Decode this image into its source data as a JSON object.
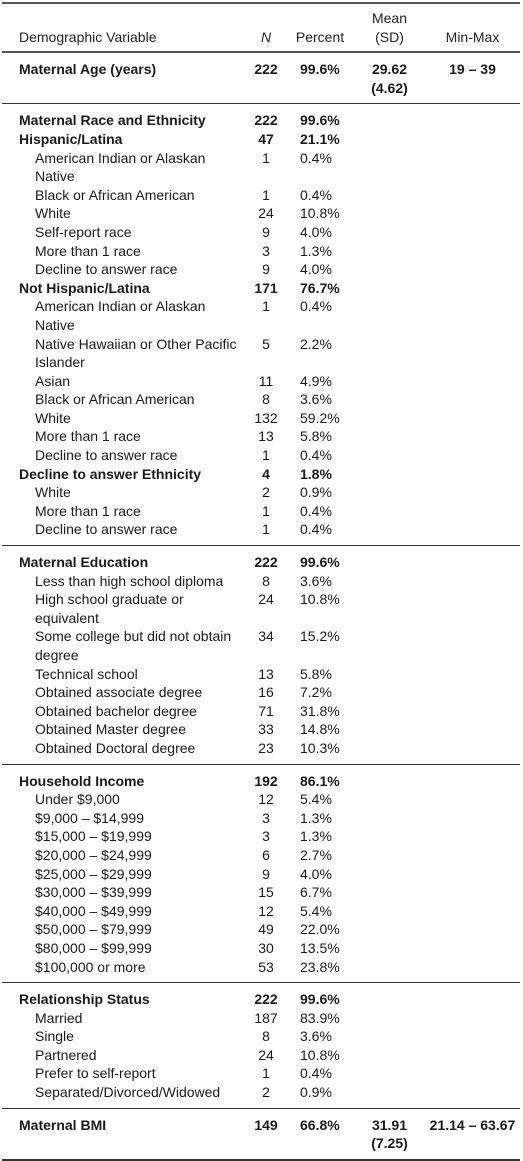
{
  "headers": {
    "variable": "Demographic Variable",
    "n": "N",
    "percent": "Percent",
    "mean_sd": "Mean (SD)",
    "minmax": "Min-Max"
  },
  "groups": [
    {
      "rows": [
        {
          "label": "Maternal Age (years)",
          "n": "222",
          "pct": "99.6%",
          "mean": "29.62 (4.62)",
          "range": "19 – 39",
          "bold": true,
          "sub": false
        }
      ]
    },
    {
      "rows": [
        {
          "label": "Maternal Race and Ethnicity",
          "n": "222",
          "pct": "99.6%",
          "mean": "",
          "range": "",
          "bold": true,
          "sub": false
        },
        {
          "label": "Hispanic/Latina",
          "n": "47",
          "pct": "21.1%",
          "mean": "",
          "range": "",
          "bold": true,
          "sub": false
        },
        {
          "label": "American Indian or Alaskan Native",
          "n": "1",
          "pct": "0.4%",
          "mean": "",
          "range": "",
          "bold": false,
          "sub": true
        },
        {
          "label": "Black or African American",
          "n": "1",
          "pct": "0.4%",
          "mean": "",
          "range": "",
          "bold": false,
          "sub": true
        },
        {
          "label": "White",
          "n": "24",
          "pct": "10.8%",
          "mean": "",
          "range": "",
          "bold": false,
          "sub": true
        },
        {
          "label": "Self-report race",
          "n": "9",
          "pct": "4.0%",
          "mean": "",
          "range": "",
          "bold": false,
          "sub": true
        },
        {
          "label": "More than 1 race",
          "n": "3",
          "pct": "1.3%",
          "mean": "",
          "range": "",
          "bold": false,
          "sub": true
        },
        {
          "label": "Decline to answer race",
          "n": "9",
          "pct": "4.0%",
          "mean": "",
          "range": "",
          "bold": false,
          "sub": true
        },
        {
          "label": "Not Hispanic/Latina",
          "n": "171",
          "pct": "76.7%",
          "mean": "",
          "range": "",
          "bold": true,
          "sub": false
        },
        {
          "label": "American Indian or Alaskan Native",
          "n": "1",
          "pct": "0.4%",
          "mean": "",
          "range": "",
          "bold": false,
          "sub": true
        },
        {
          "label": "Native Hawaiian or Other Pacific Islander",
          "n": "5",
          "pct": "2.2%",
          "mean": "",
          "range": "",
          "bold": false,
          "sub": true
        },
        {
          "label": "Asian",
          "n": "11",
          "pct": "4.9%",
          "mean": "",
          "range": "",
          "bold": false,
          "sub": true
        },
        {
          "label": "Black or African American",
          "n": "8",
          "pct": "3.6%",
          "mean": "",
          "range": "",
          "bold": false,
          "sub": true
        },
        {
          "label": "White",
          "n": "132",
          "pct": "59.2%",
          "mean": "",
          "range": "",
          "bold": false,
          "sub": true
        },
        {
          "label": "More than 1 race",
          "n": "13",
          "pct": "5.8%",
          "mean": "",
          "range": "",
          "bold": false,
          "sub": true
        },
        {
          "label": "Decline to answer race",
          "n": "1",
          "pct": "0.4%",
          "mean": "",
          "range": "",
          "bold": false,
          "sub": true
        },
        {
          "label": "Decline to answer Ethnicity",
          "n": "4",
          "pct": "1.8%",
          "mean": "",
          "range": "",
          "bold": true,
          "sub": false
        },
        {
          "label": "White",
          "n": "2",
          "pct": "0.9%",
          "mean": "",
          "range": "",
          "bold": false,
          "sub": true
        },
        {
          "label": "More than 1 race",
          "n": "1",
          "pct": "0.4%",
          "mean": "",
          "range": "",
          "bold": false,
          "sub": true
        },
        {
          "label": "Decline to answer race",
          "n": "1",
          "pct": "0.4%",
          "mean": "",
          "range": "",
          "bold": false,
          "sub": true
        }
      ]
    },
    {
      "rows": [
        {
          "label": "Maternal Education",
          "n": "222",
          "pct": "99.6%",
          "mean": "",
          "range": "",
          "bold": true,
          "sub": false
        },
        {
          "label": "Less than high school diploma",
          "n": "8",
          "pct": "3.6%",
          "mean": "",
          "range": "",
          "bold": false,
          "sub": true
        },
        {
          "label": "High school graduate or equivalent",
          "n": "24",
          "pct": "10.8%",
          "mean": "",
          "range": "",
          "bold": false,
          "sub": true
        },
        {
          "label": "Some college but did not obtain degree",
          "n": "34",
          "pct": "15.2%",
          "mean": "",
          "range": "",
          "bold": false,
          "sub": true
        },
        {
          "label": "Technical school",
          "n": "13",
          "pct": "5.8%",
          "mean": "",
          "range": "",
          "bold": false,
          "sub": true
        },
        {
          "label": "Obtained associate degree",
          "n": "16",
          "pct": "7.2%",
          "mean": "",
          "range": "",
          "bold": false,
          "sub": true
        },
        {
          "label": "Obtained bachelor degree",
          "n": "71",
          "pct": "31.8%",
          "mean": "",
          "range": "",
          "bold": false,
          "sub": true
        },
        {
          "label": "Obtained Master degree",
          "n": "33",
          "pct": "14.8%",
          "mean": "",
          "range": "",
          "bold": false,
          "sub": true
        },
        {
          "label": "Obtained Doctoral degree",
          "n": "23",
          "pct": "10.3%",
          "mean": "",
          "range": "",
          "bold": false,
          "sub": true
        }
      ]
    },
    {
      "rows": [
        {
          "label": "Household Income",
          "n": "192",
          "pct": "86.1%",
          "mean": "",
          "range": "",
          "bold": true,
          "sub": false
        },
        {
          "label": "Under $9,000",
          "n": "12",
          "pct": "5.4%",
          "mean": "",
          "range": "",
          "bold": false,
          "sub": true
        },
        {
          "label": "$9,000 – $14,999",
          "n": "3",
          "pct": "1.3%",
          "mean": "",
          "range": "",
          "bold": false,
          "sub": true
        },
        {
          "label": "$15,000 – $19,999",
          "n": "3",
          "pct": "1.3%",
          "mean": "",
          "range": "",
          "bold": false,
          "sub": true
        },
        {
          "label": "$20,000 – $24,999",
          "n": "6",
          "pct": "2.7%",
          "mean": "",
          "range": "",
          "bold": false,
          "sub": true
        },
        {
          "label": "$25,000 – $29,999",
          "n": "9",
          "pct": "4.0%",
          "mean": "",
          "range": "",
          "bold": false,
          "sub": true
        },
        {
          "label": "$30,000 – $39,999",
          "n": "15",
          "pct": "6.7%",
          "mean": "",
          "range": "",
          "bold": false,
          "sub": true
        },
        {
          "label": "$40,000 – $49,999",
          "n": "12",
          "pct": "5.4%",
          "mean": "",
          "range": "",
          "bold": false,
          "sub": true
        },
        {
          "label": "$50,000 – $79,999",
          "n": "49",
          "pct": "22.0%",
          "mean": "",
          "range": "",
          "bold": false,
          "sub": true
        },
        {
          "label": "$80,000 – $99,999",
          "n": "30",
          "pct": "13.5%",
          "mean": "",
          "range": "",
          "bold": false,
          "sub": true
        },
        {
          "label": "$100,000 or more",
          "n": "53",
          "pct": "23.8%",
          "mean": "",
          "range": "",
          "bold": false,
          "sub": true
        }
      ]
    },
    {
      "rows": [
        {
          "label": "Relationship Status",
          "n": "222",
          "pct": "99.6%",
          "mean": "",
          "range": "",
          "bold": true,
          "sub": false
        },
        {
          "label": "Married",
          "n": "187",
          "pct": "83.9%",
          "mean": "",
          "range": "",
          "bold": false,
          "sub": true
        },
        {
          "label": "Single",
          "n": "8",
          "pct": "3.6%",
          "mean": "",
          "range": "",
          "bold": false,
          "sub": true
        },
        {
          "label": "Partnered",
          "n": "24",
          "pct": "10.8%",
          "mean": "",
          "range": "",
          "bold": false,
          "sub": true
        },
        {
          "label": "Prefer to self-report",
          "n": "1",
          "pct": "0.4%",
          "mean": "",
          "range": "",
          "bold": false,
          "sub": true
        },
        {
          "label": "Separated/Divorced/Widowed",
          "n": "2",
          "pct": "0.9%",
          "mean": "",
          "range": "",
          "bold": false,
          "sub": true
        }
      ]
    },
    {
      "rows": [
        {
          "label": "Maternal BMI",
          "n": "149",
          "pct": "66.8%",
          "mean": "31.91 (7.25)",
          "range": "21.14 – 63.67",
          "bold": true,
          "sub": false
        }
      ]
    }
  ]
}
